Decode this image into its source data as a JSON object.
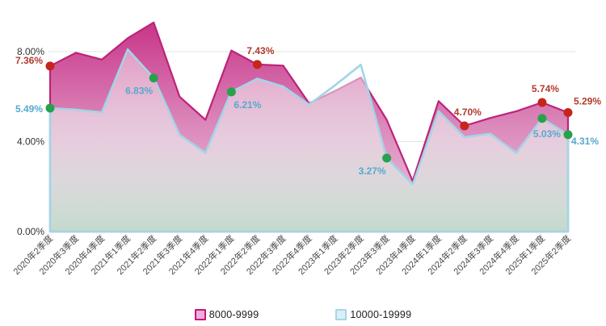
{
  "chart_data": {
    "type": "area",
    "title": "",
    "categories": [
      "2020年2季度",
      "2020年3季度",
      "2020年4季度",
      "2021年1季度",
      "2021年2季度",
      "2021年3季度",
      "2021年4季度",
      "2022年1季度",
      "2022年2季度",
      "2022年3季度",
      "2022年4季度",
      "2023年1季度",
      "2023年2季度",
      "2023年3季度",
      "2023年4季度",
      "2024年1季度",
      "2024年2季度",
      "2024年3季度",
      "2024年4季度",
      "2025年1季度",
      "2025年2季度"
    ],
    "series": [
      {
        "name": "8000-9999",
        "values": [
          7.36,
          7.95,
          7.65,
          8.6,
          9.3,
          6.0,
          4.97,
          8.05,
          7.43,
          7.38,
          5.7,
          6.25,
          6.85,
          4.97,
          2.25,
          5.8,
          4.7,
          5.05,
          5.35,
          5.74,
          5.29
        ],
        "line_color": "#bc2379",
        "fill_stops": [
          "rgba(198,46,132,0.97)",
          "rgba(218,131,184,0.95)",
          "rgba(236,207,226,1)"
        ],
        "marker_color": "#c5251b",
        "label_color": "#b23b2d",
        "legend_border": "#c2187e",
        "legend_fill": "#f0aed9"
      },
      {
        "name": "10000-19999",
        "values": [
          5.49,
          5.42,
          5.3,
          8.1,
          6.83,
          4.3,
          3.5,
          6.21,
          6.8,
          6.45,
          5.65,
          6.5,
          7.42,
          3.27,
          2.1,
          5.35,
          4.2,
          4.35,
          3.5,
          5.03,
          4.31
        ],
        "line_color": "#a3d5e6",
        "fill_stops": [
          "rgba(252,254,255,0.45)",
          "rgba(235,240,238,0.62)",
          "rgba(191,218,202,0.9)"
        ],
        "marker_color": "#27a24c",
        "label_color": "#58a9ce",
        "legend_border": "#a5d7e8",
        "legend_fill": "#dceff7"
      }
    ],
    "point_labels": [
      {
        "series": 0,
        "index": 0,
        "text": "7.36%",
        "position": "left-up"
      },
      {
        "series": 1,
        "index": 0,
        "text": "5.49%",
        "position": "left"
      },
      {
        "series": 1,
        "index": 4,
        "text": "6.83%",
        "position": "below-left"
      },
      {
        "series": 1,
        "index": 7,
        "text": "6.21%",
        "position": "below-right"
      },
      {
        "series": 0,
        "index": 8,
        "text": "7.43%",
        "position": "above"
      },
      {
        "series": 1,
        "index": 13,
        "text": "3.27%",
        "position": "below-left"
      },
      {
        "series": 0,
        "index": 16,
        "text": "4.70%",
        "position": "above"
      },
      {
        "series": 0,
        "index": 19,
        "text": "5.74%",
        "position": "above"
      },
      {
        "series": 1,
        "index": 19,
        "text": "5.03%",
        "position": "below"
      },
      {
        "series": 0,
        "index": 20,
        "text": "5.29%",
        "position": "right-above"
      },
      {
        "series": 1,
        "index": 20,
        "text": "4.31%",
        "position": "right-below"
      }
    ],
    "y_ticks": [
      {
        "value": 8,
        "label": "8.00%"
      },
      {
        "value": 4,
        "label": "4.00%"
      },
      {
        "value": 0,
        "label": "0.00%"
      }
    ],
    "ylim": [
      0,
      10
    ],
    "grid_color": "#e3e3e3",
    "axis_text_color": "#4a4a4a",
    "legend_position": "bottom"
  }
}
